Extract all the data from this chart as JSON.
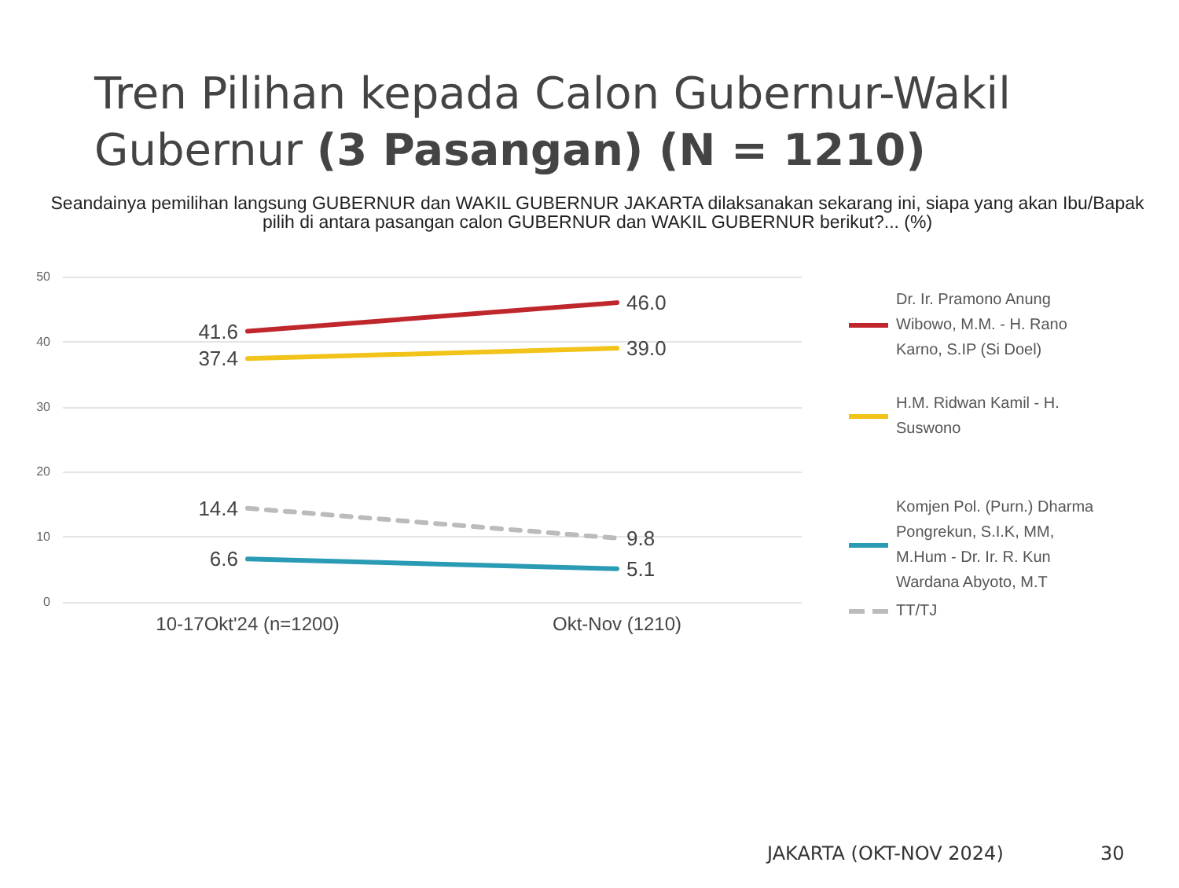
{
  "chart_data": {
    "type": "line",
    "title": "Tren Pilihan kepada Calon Gubernur-Wakil Gubernur **(3 Pasangan) (N = 1210)**",
    "subtitle": "Seandainya pemilihan langsung GUBERNUR dan WAKIL GUBERNUR JAKARTA dilaksanakan sekarang ini, siapa yang akan Ibu/Bapak pilih di antara pasangan calon GUBERNUR dan WAKIL GUBERNUR berikut?... (%)",
    "categories": [
      "10-17Okt'24 (n=1200)",
      "Okt-Nov (1210)"
    ],
    "series": [
      {
        "name": "Dr. Ir. Pramono Anung Wibowo, M.M. - H. Rano Karno, S.IP (Si Doel)",
        "color": "#c0272d",
        "values": [
          41.6,
          46.0
        ],
        "value_labels": [
          "41.6",
          "46.0"
        ],
        "line_style": "solid"
      },
      {
        "name": "H.M. Ridwan Kamil - H. Suswono",
        "color": "#f2c318",
        "values": [
          37.4,
          39.0
        ],
        "value_labels": [
          "37.4",
          "39.0"
        ],
        "line_style": "solid"
      },
      {
        "name": "Komjen Pol. (Purn.) Dharma Pongrekun, S.I.K, MM, M.Hum - Dr. Ir. R. Kun Wardana Abyoto, M.T",
        "color": "#2a9bb5",
        "values": [
          6.6,
          5.1
        ],
        "value_labels": [
          "6.6",
          "5.1"
        ],
        "line_style": "solid"
      },
      {
        "name": "TT/TJ",
        "color": "#bbbbbb",
        "values": [
          14.4,
          9.8
        ],
        "value_labels": [
          "14.4",
          "9.8"
        ],
        "line_style": "dashed"
      }
    ],
    "ylim": [
      0,
      50
    ],
    "yticks": [
      0,
      10,
      20,
      30,
      40,
      50
    ],
    "grid": "y",
    "legend": "right",
    "marker": "none",
    "annotations": [
      "JAKARTA (OKT-NOV 2024)",
      "30"
    ]
  }
}
